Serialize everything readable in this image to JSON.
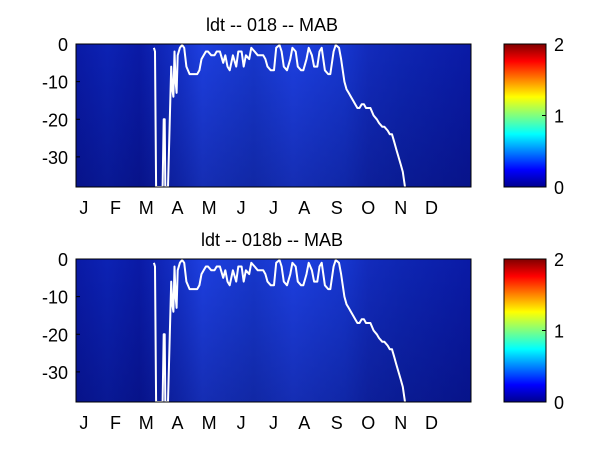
{
  "colors": {
    "colormap": [
      "#00008f",
      "#0000ff",
      "#00ffff",
      "#ffff00",
      "#ff0000",
      "#800000"
    ],
    "field_dark": "#0a1aa6",
    "field_light": "#1d3fe0",
    "contour": "#ffffff"
  },
  "chart_data": [
    {
      "type": "heatmap",
      "title": "ldt -- 018 -- MAB",
      "xlabel": "",
      "ylabel": "",
      "x_ticklabels": [
        "J",
        "F",
        "M",
        "A",
        "M",
        "J",
        "J",
        "A",
        "S",
        "O",
        "N",
        "D"
      ],
      "y_ticks": [
        0,
        -10,
        -20,
        -30
      ],
      "y_ticklabels": [
        "0",
        "-10",
        "-20",
        "-30"
      ],
      "xlim": [
        0,
        365
      ],
      "ylim": [
        -38,
        0
      ],
      "colorbar": {
        "range": [
          0,
          2
        ],
        "ticks": [
          0,
          1,
          2
        ],
        "ticklabels": [
          "0",
          "1",
          "2"
        ],
        "colormap": "jet"
      },
      "field_note_values": {
        "min": 0.05,
        "max": 0.35
      },
      "contour_line": {
        "color": "white",
        "x": [
          72,
          73,
          74,
          75,
          76,
          77,
          79,
          80,
          81,
          82,
          82.5,
          83,
          84,
          85,
          88,
          89,
          90,
          91,
          92,
          93,
          94,
          96,
          98,
          100,
          102,
          105,
          110,
          112,
          114,
          116,
          118,
          120,
          122,
          125,
          128,
          130,
          133,
          134,
          136,
          138,
          140,
          142,
          145,
          148,
          150,
          153,
          155,
          157,
          160,
          162,
          165,
          168,
          170,
          173,
          175,
          177,
          180,
          183,
          185,
          188,
          190,
          192,
          195,
          198,
          200,
          203,
          205,
          208,
          210,
          213,
          215,
          218,
          220,
          223,
          225,
          227,
          230,
          233,
          235,
          238,
          240,
          243,
          245,
          248,
          250,
          252,
          254,
          256,
          258,
          260,
          262,
          264,
          266,
          268,
          270,
          272,
          275,
          278,
          280,
          283,
          285,
          288,
          290,
          292,
          294,
          296,
          298,
          300,
          302,
          303,
          304
        ],
        "y": [
          -1,
          -2,
          -38,
          -38,
          -38,
          -38,
          -38,
          -38,
          -20,
          -20,
          -38,
          -38,
          -38,
          -38,
          -6,
          -12,
          -14,
          -2,
          -10,
          -13,
          -3,
          -1,
          0,
          -1,
          -6,
          -8,
          -8,
          -8,
          -7,
          -4,
          -3,
          -2,
          -2,
          -3,
          -3,
          -2,
          -2,
          -3,
          -5,
          -3,
          -6,
          -7,
          -3,
          -6,
          -2,
          -2,
          -6,
          -3,
          -4,
          -1,
          -2,
          -3,
          -3,
          -3,
          -4,
          -6,
          -7,
          -7,
          -1,
          0,
          -2,
          -6,
          -7,
          -4,
          -1,
          -2,
          -6,
          -7,
          -7,
          -4,
          -1,
          -3,
          -6,
          -6,
          -2,
          -1,
          -7,
          -8,
          -8,
          -2,
          0,
          -1,
          -4,
          -10,
          -12,
          -13,
          -14,
          -15,
          -16,
          -17,
          -17,
          -16,
          -16,
          -17,
          -17,
          -17,
          -19,
          -20,
          -21,
          -22,
          -22,
          -23,
          -24,
          -24,
          -26,
          -28,
          -30,
          -32,
          -34,
          -36,
          -38
        ]
      }
    },
    {
      "type": "heatmap",
      "title": "ldt -- 018b -- MAB",
      "xlabel": "",
      "ylabel": "",
      "x_ticklabels": [
        "J",
        "F",
        "M",
        "A",
        "M",
        "J",
        "J",
        "A",
        "S",
        "O",
        "N",
        "D"
      ],
      "y_ticks": [
        0,
        -10,
        -20,
        -30
      ],
      "y_ticklabels": [
        "0",
        "-10",
        "-20",
        "-30"
      ],
      "xlim": [
        0,
        365
      ],
      "ylim": [
        -38,
        0
      ],
      "colorbar": {
        "range": [
          0,
          2
        ],
        "ticks": [
          0,
          1,
          2
        ],
        "ticklabels": [
          "0",
          "1",
          "2"
        ],
        "colormap": "jet"
      },
      "field_note_values": {
        "min": 0.05,
        "max": 0.35
      },
      "contour_line": {
        "color": "white",
        "x": [
          72,
          73,
          74,
          75,
          76,
          77,
          79,
          80,
          81,
          82,
          82.5,
          83,
          84,
          85,
          88,
          89,
          90,
          91,
          92,
          93,
          94,
          96,
          98,
          100,
          102,
          105,
          110,
          112,
          114,
          116,
          118,
          120,
          122,
          125,
          128,
          130,
          133,
          134,
          136,
          138,
          140,
          142,
          145,
          148,
          150,
          153,
          155,
          157,
          160,
          162,
          165,
          168,
          170,
          173,
          175,
          177,
          180,
          183,
          185,
          188,
          190,
          192,
          195,
          198,
          200,
          203,
          205,
          208,
          210,
          213,
          215,
          218,
          220,
          223,
          225,
          227,
          230,
          233,
          235,
          238,
          240,
          243,
          245,
          248,
          250,
          252,
          254,
          256,
          258,
          260,
          262,
          264,
          266,
          268,
          270,
          272,
          275,
          278,
          280,
          283,
          285,
          288,
          290,
          292,
          294,
          296,
          298,
          300,
          302,
          303,
          304
        ],
        "y": [
          -1,
          -2,
          -38,
          -38,
          -38,
          -38,
          -38,
          -38,
          -20,
          -20,
          -38,
          -38,
          -38,
          -38,
          -6,
          -12,
          -14,
          -2,
          -10,
          -13,
          -3,
          -1,
          0,
          -1,
          -6,
          -8,
          -8,
          -8,
          -7,
          -4,
          -3,
          -2,
          -2,
          -3,
          -3,
          -2,
          -2,
          -3,
          -5,
          -3,
          -6,
          -7,
          -3,
          -6,
          -2,
          -2,
          -6,
          -3,
          -4,
          -1,
          -2,
          -3,
          -3,
          -3,
          -4,
          -6,
          -7,
          -7,
          -1,
          0,
          -2,
          -6,
          -7,
          -4,
          -1,
          -2,
          -6,
          -7,
          -7,
          -4,
          -1,
          -3,
          -6,
          -6,
          -2,
          -1,
          -7,
          -8,
          -8,
          -2,
          0,
          -1,
          -4,
          -10,
          -12,
          -13,
          -14,
          -15,
          -16,
          -17,
          -17,
          -16,
          -16,
          -17,
          -17,
          -17,
          -19,
          -20,
          -21,
          -22,
          -22,
          -23,
          -24,
          -24,
          -26,
          -28,
          -30,
          -32,
          -34,
          -36,
          -38
        ]
      }
    }
  ]
}
